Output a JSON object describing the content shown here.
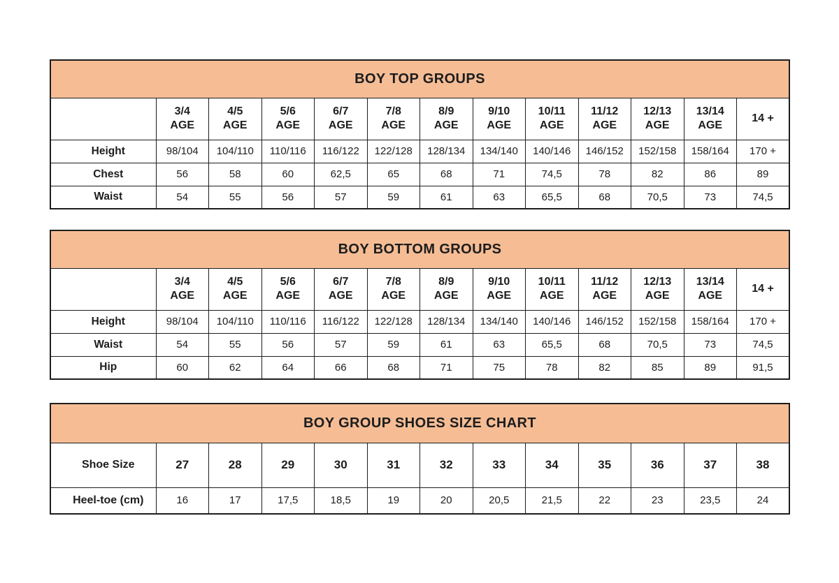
{
  "colors": {
    "title_band_bg": "#F6BD95",
    "border": "#1d1d1d",
    "text": "#1d1d1d",
    "page_bg": "#ffffff"
  },
  "tables": [
    {
      "title": "BOY TOP GROUPS",
      "age_columns": [
        "3/4\nAGE",
        "4/5\nAGE",
        "5/6\nAGE",
        "6/7\nAGE",
        "7/8\nAGE",
        "8/9\nAGE",
        "9/10\nAGE",
        "10/11\nAGE",
        "11/12\nAGE",
        "12/13\nAGE",
        "13/14\nAGE",
        "14 +"
      ],
      "rows": [
        {
          "label": "Height",
          "values": [
            "98/104",
            "104/110",
            "110/116",
            "116/122",
            "122/128",
            "128/134",
            "134/140",
            "140/146",
            "146/152",
            "152/158",
            "158/164",
            "170 +"
          ]
        },
        {
          "label": "Chest",
          "values": [
            "56",
            "58",
            "60",
            "62,5",
            "65",
            "68",
            "71",
            "74,5",
            "78",
            "82",
            "86",
            "89"
          ]
        },
        {
          "label": "Waist",
          "values": [
            "54",
            "55",
            "56",
            "57",
            "59",
            "61",
            "63",
            "65,5",
            "68",
            "70,5",
            "73",
            "74,5"
          ]
        }
      ]
    },
    {
      "title": "BOY BOTTOM GROUPS",
      "age_columns": [
        "3/4\nAGE",
        "4/5\nAGE",
        "5/6\nAGE",
        "6/7\nAGE",
        "7/8\nAGE",
        "8/9\nAGE",
        "9/10\nAGE",
        "10/11\nAGE",
        "11/12\nAGE",
        "12/13\nAGE",
        "13/14\nAGE",
        "14 +"
      ],
      "rows": [
        {
          "label": "Height",
          "values": [
            "98/104",
            "104/110",
            "110/116",
            "116/122",
            "122/128",
            "128/134",
            "134/140",
            "140/146",
            "146/152",
            "152/158",
            "158/164",
            "170 +"
          ]
        },
        {
          "label": "Waist",
          "values": [
            "54",
            "55",
            "56",
            "57",
            "59",
            "61",
            "63",
            "65,5",
            "68",
            "70,5",
            "73",
            "74,5"
          ]
        },
        {
          "label": "Hip",
          "values": [
            "60",
            "62",
            "64",
            "66",
            "68",
            "71",
            "75",
            "78",
            "82",
            "85",
            "89",
            "91,5"
          ]
        }
      ]
    },
    {
      "title": "BOY GROUP SHOES SIZE CHART",
      "rows": [
        {
          "label": "Shoe Size",
          "values": [
            "27",
            "28",
            "29",
            "30",
            "31",
            "32",
            "33",
            "34",
            "35",
            "36",
            "37",
            "38"
          ]
        },
        {
          "label": "Heel-toe (cm)",
          "values": [
            "16",
            "17",
            "17,5",
            "18,5",
            "19",
            "20",
            "20,5",
            "21,5",
            "22",
            "23",
            "23,5",
            "24"
          ]
        }
      ]
    }
  ]
}
